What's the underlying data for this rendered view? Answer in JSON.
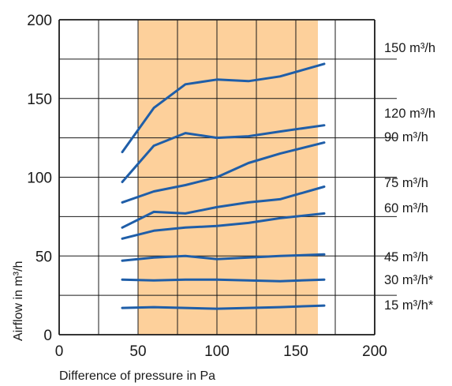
{
  "chart_data": {
    "type": "line",
    "title": "",
    "xlabel": "Difference of pressure in Pa",
    "ylabel": "Airflow in m³/h",
    "xlim": [
      0,
      200
    ],
    "ylim": [
      0,
      200
    ],
    "x_ticks": [
      "0",
      "50",
      "100",
      "150",
      "200"
    ],
    "y_ticks": [
      "0",
      "50",
      "100",
      "150",
      "200"
    ],
    "grid": true,
    "legend": "right-side labels",
    "highlight_band": {
      "x_range": [
        50,
        164
      ],
      "color": "#fdd09b"
    },
    "line_color": "#1f5ea8",
    "series": [
      {
        "name": "150 m³/h",
        "x": [
          40,
          60,
          80,
          100,
          120,
          140,
          168
        ],
        "y": [
          116,
          144,
          159,
          162,
          161,
          164,
          172
        ]
      },
      {
        "name": "120 m³/h",
        "x": [
          40,
          60,
          80,
          100,
          120,
          140,
          168
        ],
        "y": [
          97,
          120,
          128,
          125,
          126,
          129,
          133
        ]
      },
      {
        "name": "90 m³/h",
        "x": [
          40,
          60,
          80,
          100,
          120,
          140,
          168
        ],
        "y": [
          84,
          91,
          95,
          100,
          109,
          115,
          122
        ]
      },
      {
        "name": "75 m³/h",
        "x": [
          40,
          60,
          80,
          100,
          120,
          140,
          168
        ],
        "y": [
          68,
          78,
          77,
          81,
          84,
          86,
          94
        ]
      },
      {
        "name": "60 m³/h",
        "x": [
          40,
          60,
          80,
          100,
          120,
          140,
          168
        ],
        "y": [
          61,
          66,
          68,
          69,
          71,
          74,
          77
        ]
      },
      {
        "name": "45 m³/h",
        "x": [
          40,
          60,
          80,
          100,
          120,
          140,
          168
        ],
        "y": [
          47,
          49,
          50,
          48,
          49,
          50,
          51
        ]
      },
      {
        "name": "30 m³/h*",
        "x": [
          40,
          60,
          80,
          100,
          120,
          140,
          168
        ],
        "y": [
          35,
          34.5,
          35,
          35,
          34.5,
          34,
          35
        ]
      },
      {
        "name": "15 m³/h*",
        "x": [
          40,
          60,
          80,
          100,
          120,
          140,
          168
        ],
        "y": [
          17,
          17.5,
          17,
          16.5,
          17,
          17.5,
          18.5
        ]
      }
    ]
  }
}
